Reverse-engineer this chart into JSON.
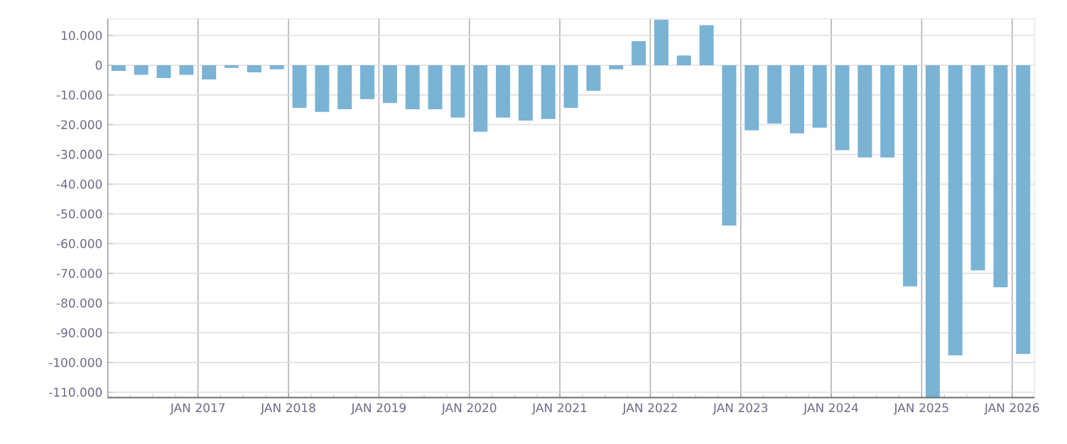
{
  "chart_data": {
    "type": "bar",
    "color": "#7ab3d4",
    "grid": true,
    "x": [
      "2016-02-15",
      "2016-05-15",
      "2016-08-15",
      "2016-11-15",
      "2017-02-15",
      "2017-05-15",
      "2017-08-15",
      "2017-11-15",
      "2018-02-15",
      "2018-05-15",
      "2018-08-15",
      "2018-11-15",
      "2019-02-15",
      "2019-05-15",
      "2019-08-15",
      "2019-11-15",
      "2020-02-15",
      "2020-05-15",
      "2020-08-15",
      "2020-11-15",
      "2021-02-15",
      "2021-05-15",
      "2021-08-15",
      "2021-11-15",
      "2022-02-15",
      "2022-05-15",
      "2022-08-15",
      "2022-11-15",
      "2023-02-15",
      "2023-05-15",
      "2023-08-15",
      "2023-11-15",
      "2024-02-15",
      "2024-05-15",
      "2024-08-15",
      "2024-11-15",
      "2025-02-15",
      "2025-05-15",
      "2025-08-15",
      "2025-11-15",
      "2026-02-15"
    ],
    "values": [
      -1900,
      -3200,
      -4300,
      -3200,
      -4800,
      -900,
      -2400,
      -1400,
      -14300,
      -15700,
      -14800,
      -11400,
      -12700,
      -14800,
      -14800,
      -17600,
      -22400,
      -17600,
      -18600,
      -18100,
      -14300,
      -8600,
      -1400,
      8100,
      15300,
      3300,
      13500,
      -53900,
      -21900,
      -19600,
      -22900,
      -21000,
      -28600,
      -31000,
      -31000,
      -74400,
      -112000,
      -97600,
      -69000,
      -74700,
      -97100
    ],
    "xlim": [
      "2016-01-01",
      "2026-04-01"
    ],
    "xticks": [
      {
        "value": "2016-04-01",
        "label": null
      },
      {
        "value": "2016-07-01",
        "label": null
      },
      {
        "value": "2016-10-01",
        "label": null
      },
      {
        "value": "2017-01-01",
        "label": "JAN 2017"
      },
      {
        "value": "2017-04-01",
        "label": null
      },
      {
        "value": "2017-07-01",
        "label": null
      },
      {
        "value": "2017-10-01",
        "label": null
      },
      {
        "value": "2018-01-01",
        "label": "JAN 2018"
      },
      {
        "value": "2018-04-01",
        "label": null
      },
      {
        "value": "2018-07-01",
        "label": null
      },
      {
        "value": "2018-10-01",
        "label": null
      },
      {
        "value": "2019-01-01",
        "label": "JAN 2019"
      },
      {
        "value": "2019-04-01",
        "label": null
      },
      {
        "value": "2019-07-01",
        "label": null
      },
      {
        "value": "2019-10-01",
        "label": null
      },
      {
        "value": "2020-01-01",
        "label": "JAN 2020"
      },
      {
        "value": "2020-04-01",
        "label": null
      },
      {
        "value": "2020-07-01",
        "label": null
      },
      {
        "value": "2020-10-01",
        "label": null
      },
      {
        "value": "2021-01-01",
        "label": "JAN 2021"
      },
      {
        "value": "2021-04-01",
        "label": null
      },
      {
        "value": "2021-07-01",
        "label": null
      },
      {
        "value": "2021-10-01",
        "label": null
      },
      {
        "value": "2022-01-01",
        "label": "JAN 2022"
      },
      {
        "value": "2022-04-01",
        "label": null
      },
      {
        "value": "2022-07-01",
        "label": null
      },
      {
        "value": "2022-10-01",
        "label": null
      },
      {
        "value": "2023-01-01",
        "label": "JAN 2023"
      },
      {
        "value": "2023-04-01",
        "label": null
      },
      {
        "value": "2023-07-01",
        "label": null
      },
      {
        "value": "2023-10-01",
        "label": null
      },
      {
        "value": "2024-01-01",
        "label": "JAN 2024"
      },
      {
        "value": "2024-04-01",
        "label": null
      },
      {
        "value": "2024-07-01",
        "label": null
      },
      {
        "value": "2024-10-01",
        "label": null
      },
      {
        "value": "2025-01-01",
        "label": "JAN 2025"
      },
      {
        "value": "2025-04-01",
        "label": null
      },
      {
        "value": "2025-07-01",
        "label": null
      },
      {
        "value": "2025-10-01",
        "label": null
      },
      {
        "value": "2026-01-01",
        "label": "JAN 2026"
      }
    ],
    "ylim": [
      -112000,
      15600
    ],
    "yticks": [
      {
        "value": 10000,
        "label": "10.000"
      },
      {
        "value": 0,
        "label": "0"
      },
      {
        "value": -10000,
        "label": "-10.000"
      },
      {
        "value": -20000,
        "label": "-20.000"
      },
      {
        "value": -30000,
        "label": "-30.000"
      },
      {
        "value": -40000,
        "label": "-40.000"
      },
      {
        "value": -50000,
        "label": "-50.000"
      },
      {
        "value": -60000,
        "label": "-60.000"
      },
      {
        "value": -70000,
        "label": "-70.000"
      },
      {
        "value": -80000,
        "label": "-80.000"
      },
      {
        "value": -90000,
        "label": "-90.000"
      },
      {
        "value": -100000,
        "label": "-100.000"
      },
      {
        "value": -110000,
        "label": "-110.000"
      }
    ]
  }
}
